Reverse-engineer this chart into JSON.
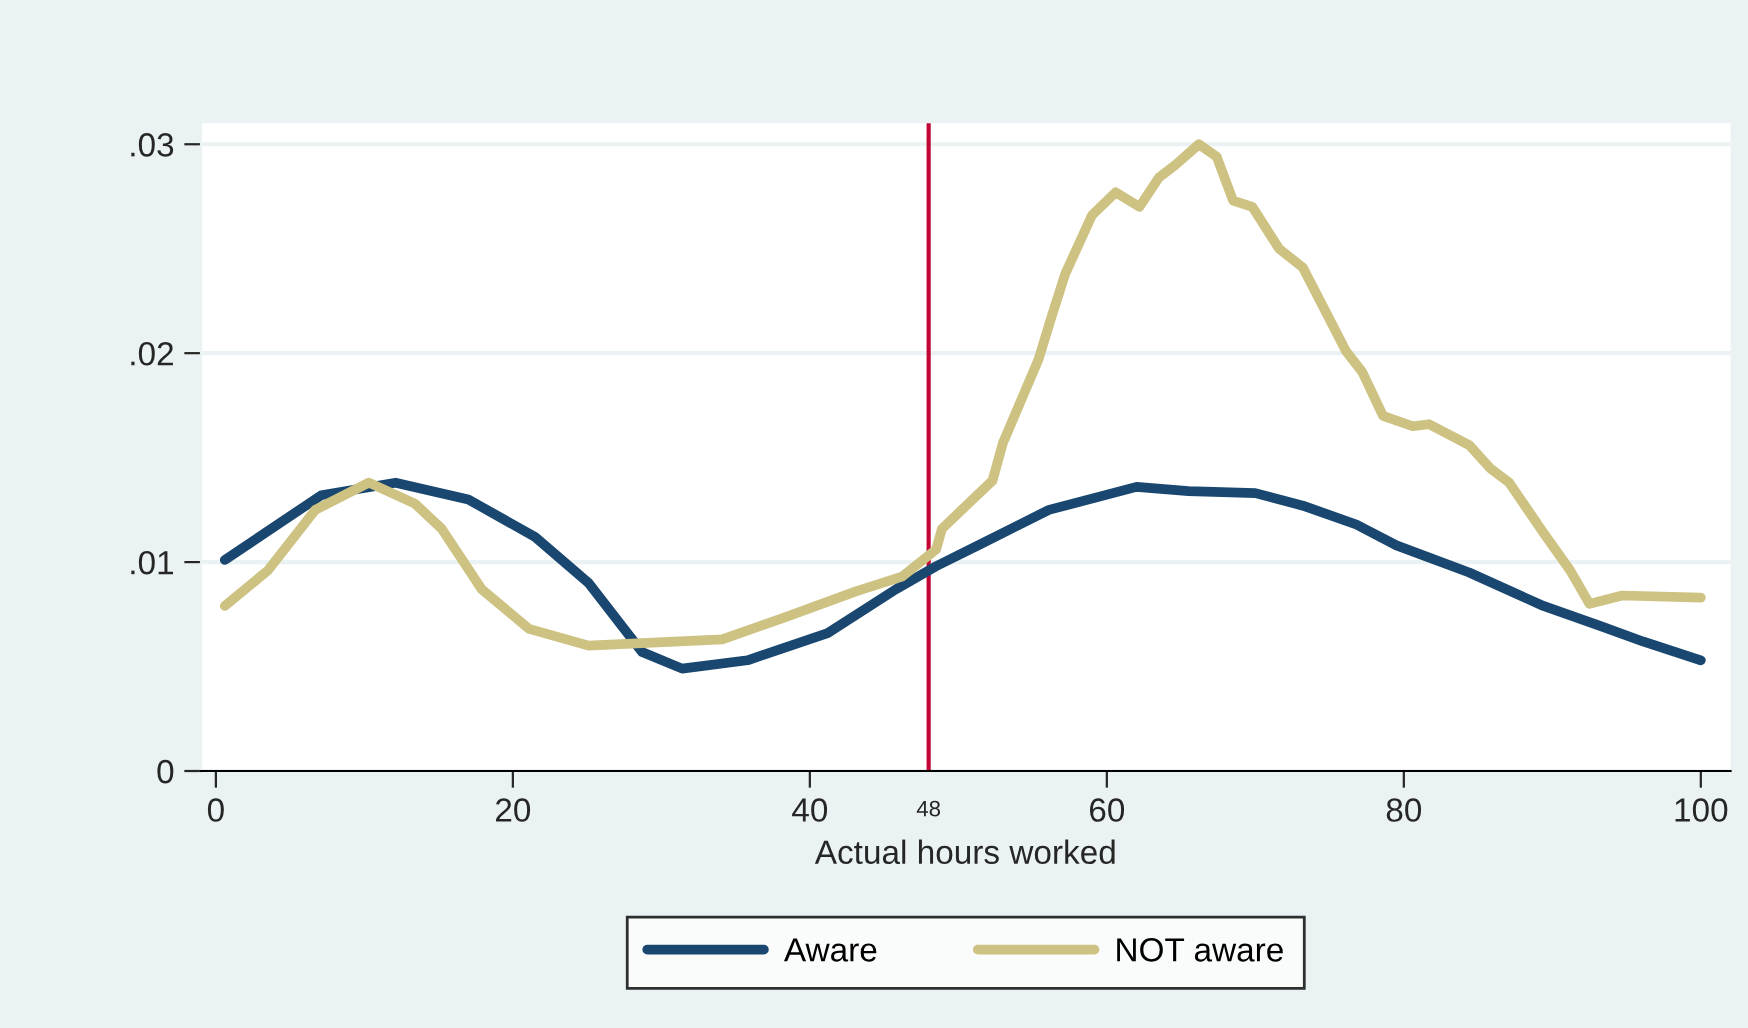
{
  "chart_data": {
    "type": "line",
    "xlabel": "Actual hours worked",
    "xlim": [
      -1,
      102
    ],
    "ylim": [
      0,
      0.031
    ],
    "xticks": [
      0,
      20,
      40,
      60,
      80,
      100
    ],
    "yticks": [
      {
        "value": 0,
        "label": "0"
      },
      {
        "value": 0.01,
        "label": ".01"
      },
      {
        "value": 0.02,
        "label": ".02"
      },
      {
        "value": 0.03,
        "label": ".03"
      }
    ],
    "grid": "y",
    "legend": "bottom",
    "marker": "none",
    "line_style": "solid",
    "ref_lines": [
      {
        "axis": "x",
        "value": 48,
        "label": "48",
        "color": "#c10534"
      }
    ],
    "series": [
      {
        "name": "Aware",
        "color": "#1a476f",
        "x": [
          0.6,
          7.1,
          12.1,
          17,
          21.5,
          25.1,
          28.7,
          31.4,
          35.8,
          41.2,
          45.8,
          48.5,
          51.6,
          56.1,
          62,
          65.5,
          70,
          73.2,
          76.8,
          79.5,
          84.4,
          89.4,
          93.4,
          96.1,
          100
        ],
        "values": [
          0.0101,
          0.0132,
          0.0138,
          0.013,
          0.0112,
          0.009,
          0.0057,
          0.0049,
          0.0053,
          0.0066,
          0.0087,
          0.0098,
          0.0109,
          0.0125,
          0.0136,
          0.0134,
          0.0133,
          0.0127,
          0.0118,
          0.0108,
          0.0095,
          0.0079,
          0.0069,
          0.0062,
          0.0053
        ]
      },
      {
        "name": "NOT aware",
        "color": "#cdc282",
        "x": [
          0.6,
          3.5,
          6.7,
          10.3,
          13.4,
          15.2,
          17.9,
          21.1,
          25.1,
          34.1,
          38.5,
          43.1,
          46.2,
          48.5,
          48.9,
          52.3,
          53,
          55.4,
          56.3,
          57.2,
          59,
          60.6,
          62.2,
          63.5,
          64.6,
          66.2,
          67.4,
          68.5,
          69.8,
          71.6,
          73.2,
          76.1,
          77.2,
          78.6,
          80.6,
          81.7,
          84.4,
          85.8,
          87.1,
          89.4,
          91.2,
          92.5,
          94.7,
          100
        ],
        "values": [
          0.0079,
          0.0096,
          0.0125,
          0.0138,
          0.0128,
          0.0116,
          0.0087,
          0.0068,
          0.006,
          0.0063,
          0.0074,
          0.0086,
          0.0093,
          0.0106,
          0.0116,
          0.0139,
          0.0157,
          0.0197,
          0.0218,
          0.0238,
          0.0266,
          0.0277,
          0.027,
          0.0284,
          0.029,
          0.03,
          0.0294,
          0.0273,
          0.027,
          0.025,
          0.0241,
          0.0201,
          0.0191,
          0.017,
          0.0165,
          0.0166,
          0.0156,
          0.0145,
          0.0138,
          0.0114,
          0.0096,
          0.008,
          0.0084,
          0.0083
        ]
      }
    ]
  }
}
